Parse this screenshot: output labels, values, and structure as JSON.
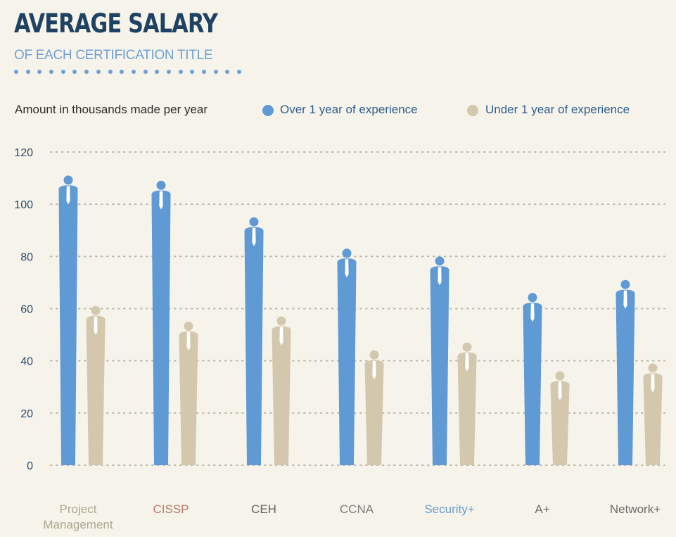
{
  "header": {
    "title": "AVERAGE SALARY",
    "subtitle": "OF EACH CERTIFICATION TITLE"
  },
  "legend": {
    "note": "Amount in thousands made per year",
    "items": [
      {
        "label": "Over 1 year of experience",
        "color": "#5f9ad5"
      },
      {
        "label": "Under 1 year of experience",
        "color": "#d3c7ad"
      }
    ]
  },
  "chart_data": {
    "type": "bar",
    "categories": [
      "Project Management",
      "CISSP",
      "CEH",
      "CCNA",
      "Security+",
      "A+",
      "Network+"
    ],
    "category_colors": [
      "#b0a690",
      "#b8766a",
      "#5f5f5f",
      "#7b7b7b",
      "#6b9bc8",
      "#6a6a6a",
      "#6a6a6a"
    ],
    "series": [
      {
        "name": "Over 1 year of experience",
        "values": [
          111,
          109,
          95,
          83,
          80,
          66,
          71
        ],
        "color": "#5f9ad5"
      },
      {
        "name": "Under 1 year of experience",
        "values": [
          61,
          55,
          57,
          44,
          47,
          36,
          39
        ],
        "color": "#d3c7ad"
      }
    ],
    "yticks": [
      0,
      20,
      40,
      60,
      80,
      100,
      120
    ],
    "ylim": [
      0,
      120
    ],
    "grid": true,
    "legend_position": "top"
  }
}
